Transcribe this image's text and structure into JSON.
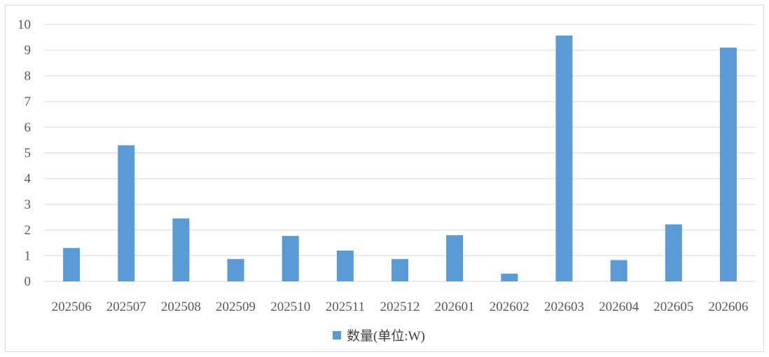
{
  "chart_data": {
    "type": "bar",
    "categories": [
      "202506",
      "202507",
      "202508",
      "202509",
      "202510",
      "202511",
      "202512",
      "202601",
      "202602",
      "202603",
      "202604",
      "202605",
      "202606"
    ],
    "series": [
      {
        "name": "数量(单位:W)",
        "values": [
          1.3,
          5.3,
          2.45,
          0.87,
          1.77,
          1.2,
          0.87,
          1.8,
          0.3,
          9.57,
          0.83,
          2.22,
          9.1
        ],
        "color": "#5b9bd5"
      }
    ],
    "yticks": [
      0,
      1,
      2,
      3,
      4,
      5,
      6,
      7,
      8,
      9,
      10
    ],
    "ylim": [
      0,
      10
    ],
    "grid": true,
    "legend": "bottom",
    "title": "",
    "xlabel": "",
    "ylabel": ""
  }
}
